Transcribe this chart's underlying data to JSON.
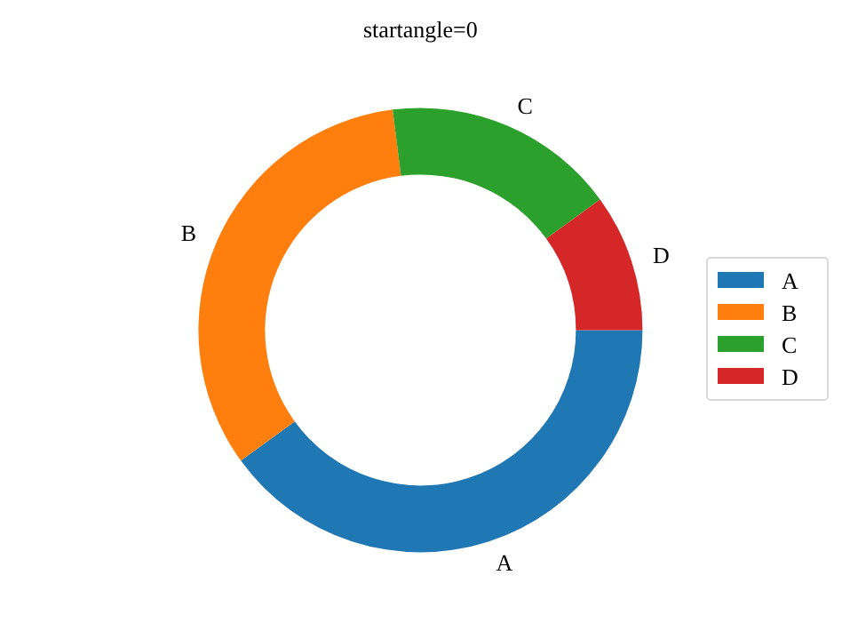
{
  "chart_data": {
    "type": "donut",
    "title": "startangle=0",
    "categories": [
      "A",
      "B",
      "C",
      "D"
    ],
    "values": [
      40,
      33,
      17,
      10
    ],
    "colors": [
      "#1f77b4",
      "#ff7f0e",
      "#2ca02c",
      "#d62728"
    ],
    "legend": "right"
  }
}
